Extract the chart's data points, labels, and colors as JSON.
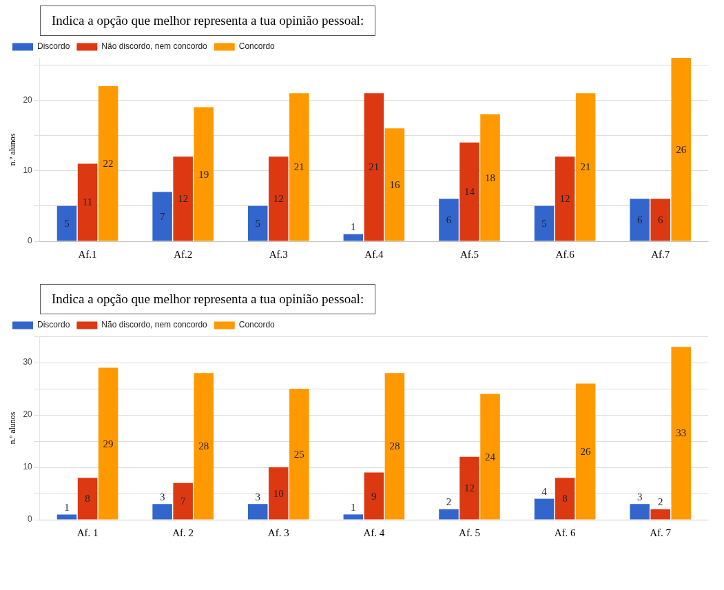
{
  "chart_data": [
    {
      "type": "bar",
      "title": "Indica a opção que melhor representa a tua opinião pessoal:",
      "ylabel": "n.º alunos",
      "categories": [
        "Af.1",
        "Af.2",
        "Af.3",
        "Af.4",
        "Af.5",
        "Af.6",
        "Af.7"
      ],
      "series": [
        {
          "name": "Discordo",
          "color": "#3366cc",
          "values": [
            5,
            7,
            5,
            1,
            6,
            5,
            6
          ]
        },
        {
          "name": "Não discordo, nem concordo",
          "color": "#dc3912",
          "values": [
            11,
            12,
            12,
            21,
            14,
            12,
            6
          ]
        },
        {
          "name": "Concordo",
          "color": "#ff9900",
          "values": [
            22,
            19,
            21,
            16,
            18,
            21,
            26
          ]
        }
      ],
      "ylim": [
        0,
        26
      ],
      "yticks": [
        0,
        {
          "value": 5,
          "label": null
        },
        10,
        {
          "value": 15,
          "label": null
        },
        20,
        {
          "value": 25,
          "label": null
        }
      ],
      "grid": "y",
      "legend": "top left",
      "data_labels": true
    },
    {
      "type": "bar",
      "title": "Indica a opção que melhor representa a tua opinião pessoal:",
      "ylabel": "n.º alunos",
      "categories": [
        "Af. 1",
        "Af. 2",
        "Af. 3",
        "Af. 4",
        "Af. 5",
        "Af. 6",
        "Af. 7"
      ],
      "series": [
        {
          "name": "Discordo",
          "color": "#3366cc",
          "values": [
            1,
            3,
            3,
            1,
            2,
            4,
            3
          ]
        },
        {
          "name": "Não discordo, nem concordo",
          "color": "#dc3912",
          "values": [
            8,
            7,
            10,
            9,
            12,
            8,
            2
          ]
        },
        {
          "name": "Concordo",
          "color": "#ff9900",
          "values": [
            29,
            28,
            25,
            28,
            24,
            26,
            33
          ]
        }
      ],
      "ylim": [
        0,
        35
      ],
      "yticks": [
        0,
        {
          "value": 5,
          "label": null
        },
        10,
        {
          "value": 15,
          "label": null
        },
        20,
        {
          "value": 25,
          "label": null
        },
        30,
        {
          "value": 35,
          "label": null
        }
      ],
      "grid": "y",
      "legend": "top left",
      "data_labels": true
    }
  ]
}
